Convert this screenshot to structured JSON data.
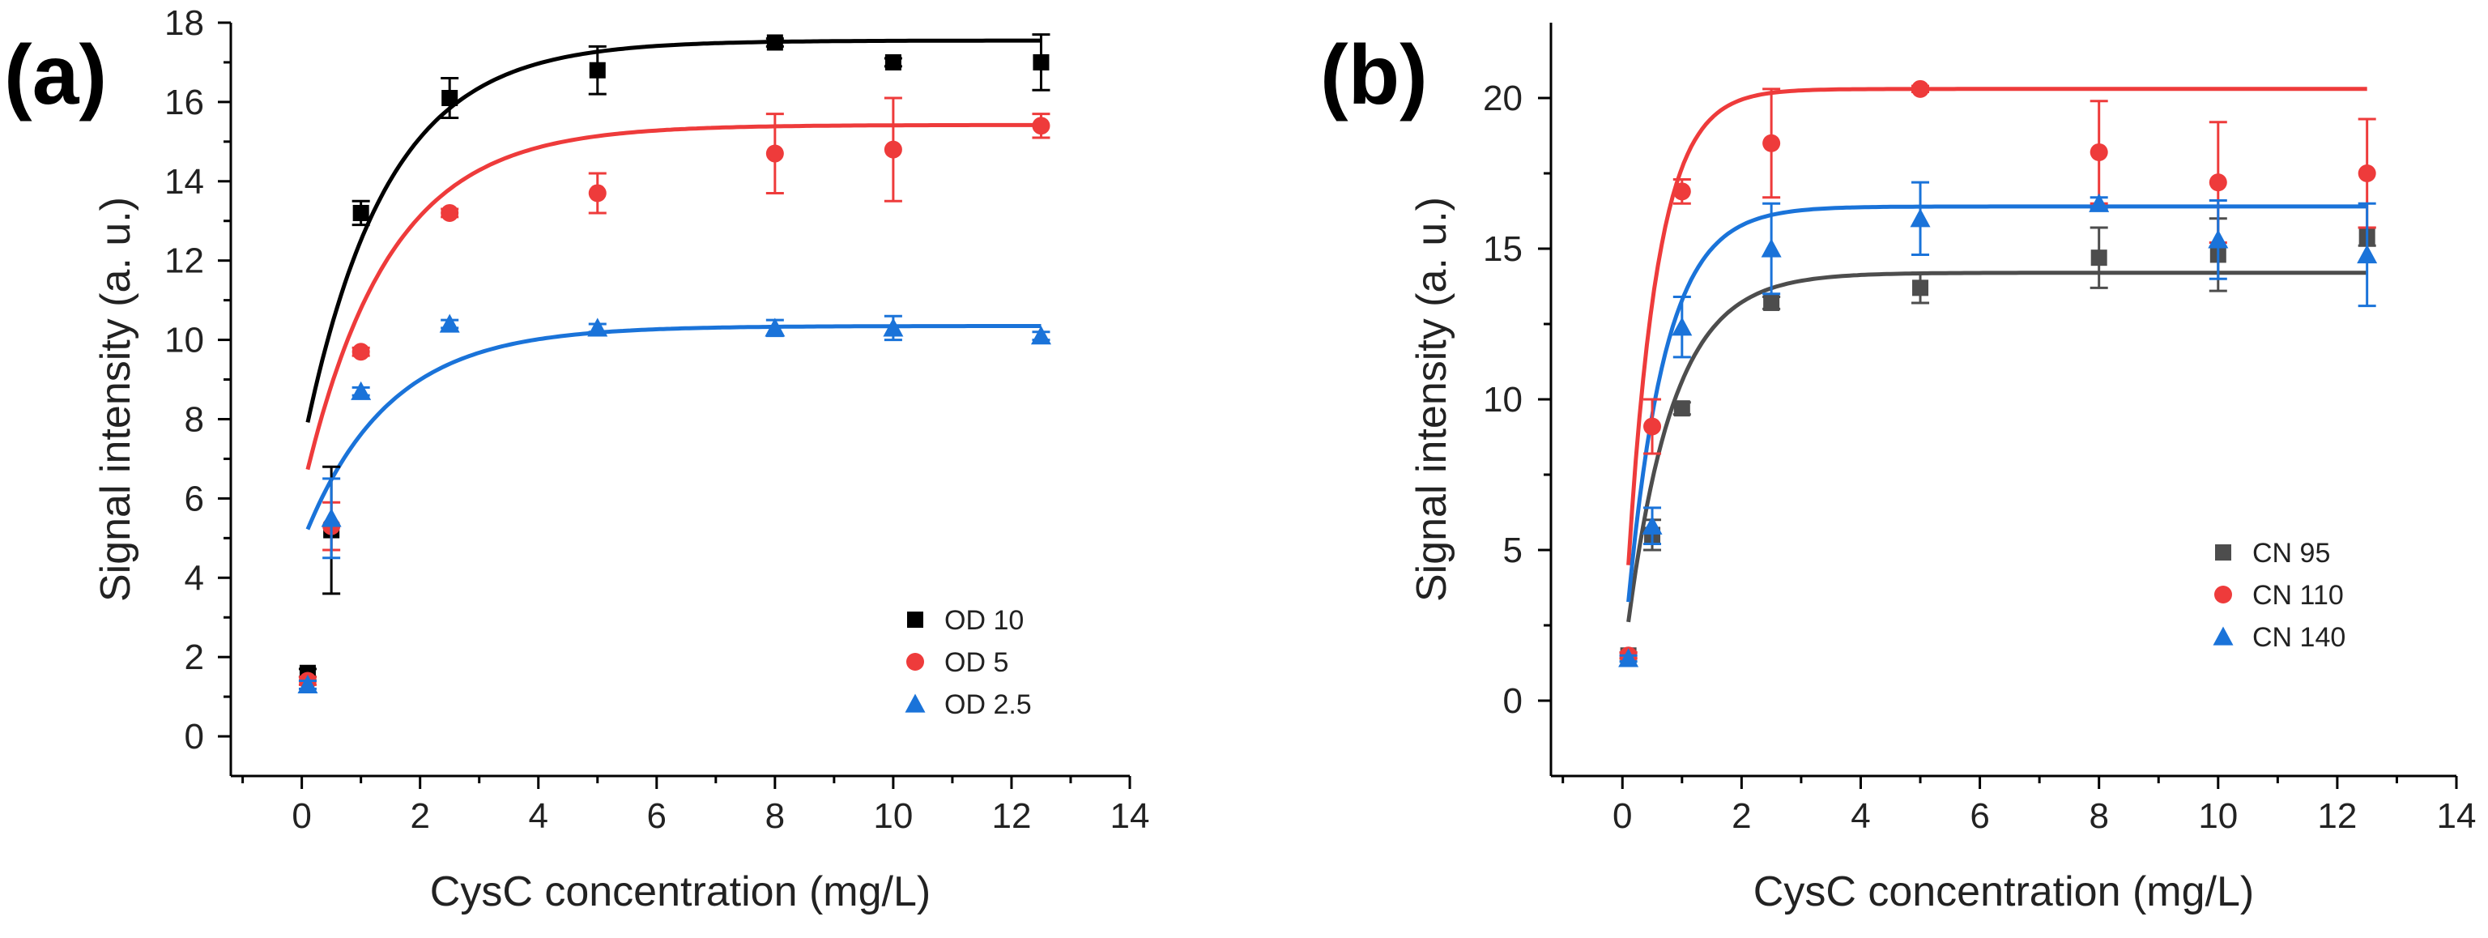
{
  "chart_data": [
    {
      "panel_label": "(a)",
      "type": "scatter",
      "xlabel": "CysC concentration (mg/L)",
      "ylabel": "Signal intensity (a. u.)",
      "xlim": [
        -1.2,
        14
      ],
      "ylim": [
        -1,
        18
      ],
      "xticks": [
        0,
        2,
        4,
        6,
        8,
        10,
        12,
        14
      ],
      "yticks": [
        0,
        2,
        4,
        6,
        8,
        10,
        12,
        14,
        16,
        18
      ],
      "legend_position": "bottom-right",
      "series": [
        {
          "name": "OD 10",
          "marker": "square",
          "color": "#000000",
          "x": [
            0.1,
            0.5,
            1,
            2.5,
            5,
            8,
            10,
            12.5
          ],
          "y": [
            1.6,
            5.2,
            13.2,
            16.1,
            16.8,
            17.5,
            17.0,
            17.0
          ],
          "err": [
            0.1,
            1.6,
            0.3,
            0.5,
            0.6,
            0.1,
            0.1,
            0.7
          ],
          "fit": {
            "y0": 7.2,
            "ymax": 17.55,
            "k": 0.72
          }
        },
        {
          "name": "OD 5",
          "marker": "circle",
          "color": "#ee3b3b",
          "x": [
            0.1,
            0.5,
            1,
            2.5,
            5,
            8,
            10,
            12.5
          ],
          "y": [
            1.4,
            5.3,
            9.7,
            13.2,
            13.7,
            14.7,
            14.8,
            15.4
          ],
          "err": [
            0.1,
            0.6,
            0.1,
            0.1,
            0.5,
            1.0,
            1.3,
            0.3
          ],
          "fit": {
            "y0": 6.1,
            "ymax": 15.42,
            "k": 0.7
          }
        },
        {
          "name": "OD 2.5",
          "marker": "triangle",
          "color": "#1a73d9",
          "x": [
            0.1,
            0.5,
            1,
            2.5,
            5,
            8,
            10,
            12.5
          ],
          "y": [
            1.3,
            5.5,
            8.7,
            10.4,
            10.3,
            10.3,
            10.3,
            10.1
          ],
          "err": [
            0.1,
            1.0,
            0.1,
            0.1,
            0.1,
            0.2,
            0.3,
            0.1
          ],
          "fit": {
            "y0": 4.85,
            "ymax": 10.35,
            "k": 0.7
          }
        }
      ]
    },
    {
      "panel_label": "(b)",
      "type": "scatter",
      "xlabel": "CysC concentration (mg/L)",
      "ylabel": "Signal intensity (a. u.)",
      "xlim": [
        -1.2,
        14
      ],
      "ylim": [
        -2.5,
        22.5
      ],
      "xticks": [
        0,
        2,
        4,
        6,
        8,
        10,
        12,
        14
      ],
      "yticks": [
        0,
        5,
        10,
        15,
        20
      ],
      "legend_position": "bottom-right",
      "series": [
        {
          "name": "CN 95",
          "marker": "square",
          "color": "#4d4d4d",
          "x": [
            0.1,
            0.5,
            1,
            2.5,
            5,
            8,
            10,
            12.5
          ],
          "y": [
            1.5,
            5.5,
            9.7,
            13.2,
            13.7,
            14.7,
            14.8,
            15.4
          ],
          "err": [
            0.1,
            0.5,
            0.2,
            0.2,
            0.5,
            1.0,
            1.2,
            0.3
          ],
          "fit": {
            "y0": 1.0,
            "ymax": 14.2,
            "k": 1.3
          }
        },
        {
          "name": "CN 110",
          "marker": "circle",
          "color": "#ee3b3b",
          "x": [
            0.1,
            0.5,
            1,
            2.5,
            5,
            8,
            10,
            12.5
          ],
          "y": [
            1.5,
            9.1,
            16.9,
            18.5,
            20.3,
            18.2,
            17.2,
            17.5
          ],
          "err": [
            0.1,
            0.9,
            0.4,
            1.8,
            0.1,
            1.7,
            2.0,
            1.8
          ],
          "fit": {
            "y0": 1.0,
            "ymax": 20.3,
            "k": 2.0
          }
        },
        {
          "name": "CN 140",
          "marker": "triangle",
          "color": "#1a73d9",
          "x": [
            0.1,
            0.5,
            1,
            2.5,
            5,
            8,
            10,
            12.5
          ],
          "y": [
            1.4,
            5.8,
            12.4,
            15.0,
            16.0,
            16.5,
            15.3,
            14.8
          ],
          "err": [
            0.1,
            0.6,
            1.0,
            1.5,
            1.2,
            0.2,
            1.3,
            1.7
          ],
          "fit": {
            "y0": 1.0,
            "ymax": 16.4,
            "k": 1.6
          }
        }
      ]
    }
  ]
}
